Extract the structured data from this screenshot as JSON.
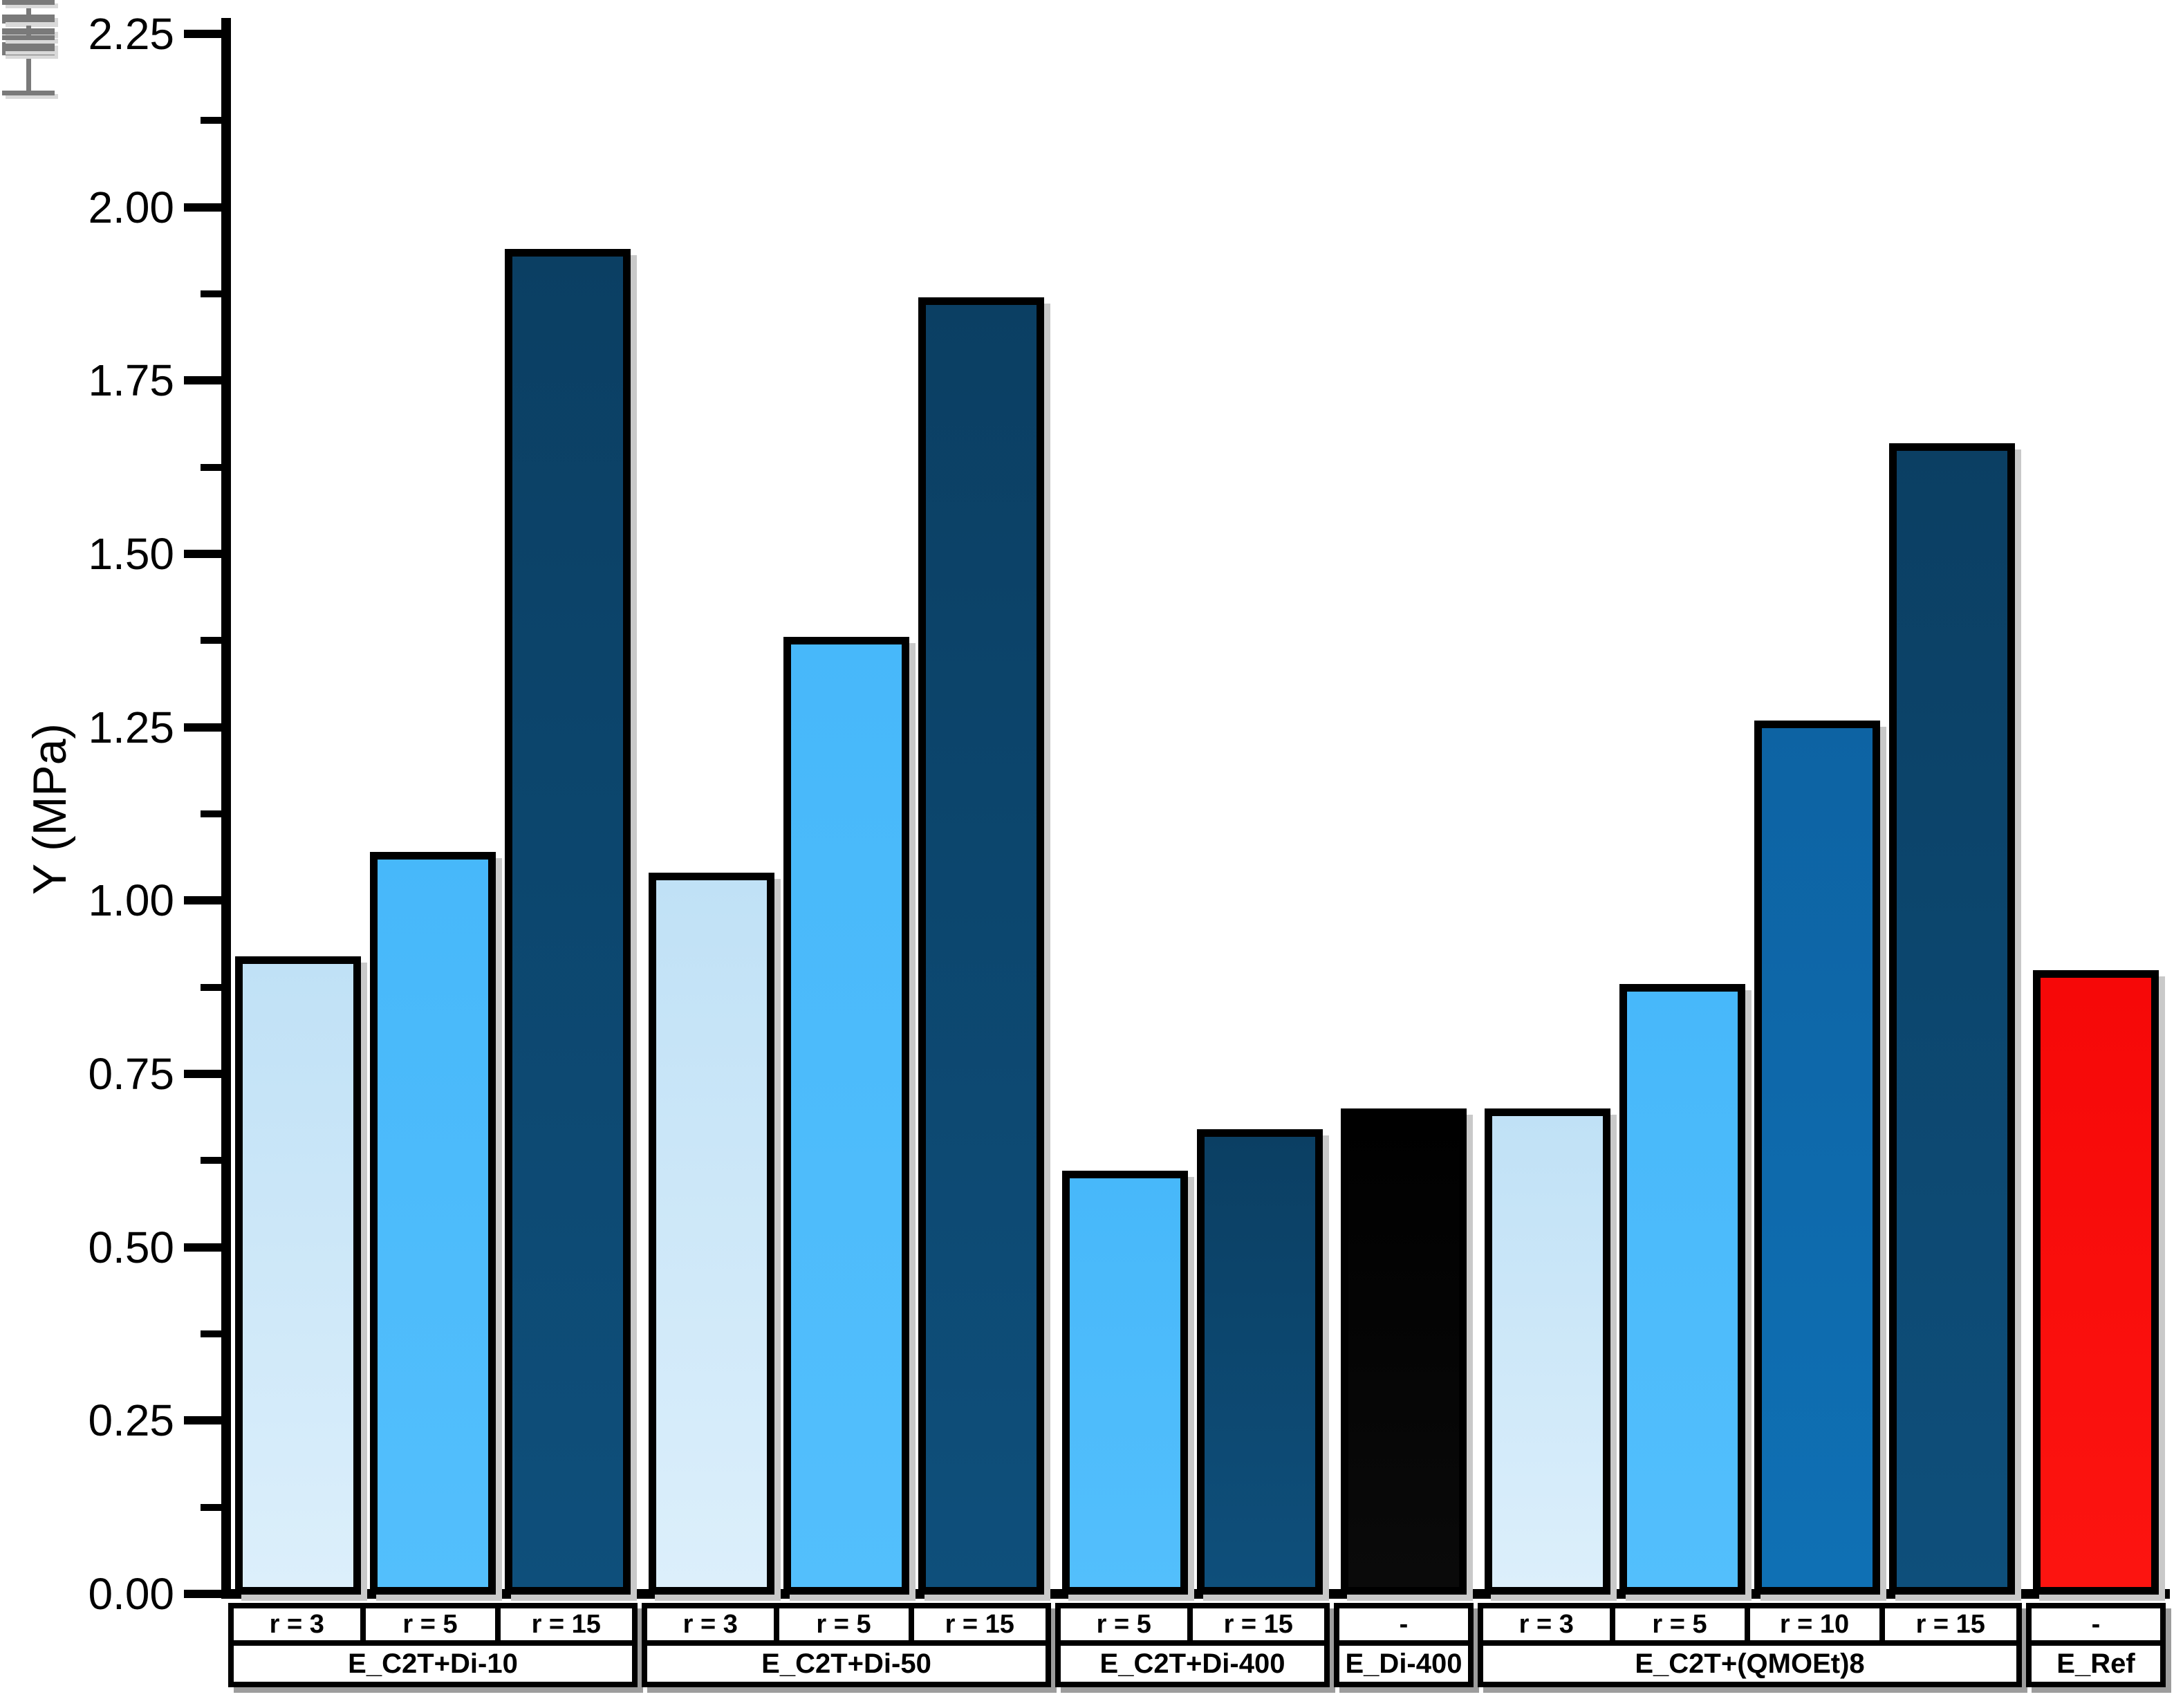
{
  "page": {
    "background": "#ffffff"
  },
  "chart_data": {
    "type": "bar",
    "title": "",
    "xlabel": "",
    "ylabel": "Y (MPa)",
    "ylim": [
      0,
      2.25
    ],
    "yticks": [
      "0.00",
      "0.25",
      "0.50",
      "0.75",
      "1.00",
      "1.25",
      "1.50",
      "1.75",
      "2.00",
      "2.25"
    ],
    "minor_tick_values": [
      0.125,
      0.375,
      0.625,
      0.875,
      1.125,
      1.375,
      1.625,
      1.875,
      2.125
    ],
    "grid": false,
    "legend_position": "none",
    "error_bar_color": "#7a7a7a",
    "axis_color": "#000000",
    "bar_colors": {
      "r3": {
        "top": "#c0e1f6",
        "bottom": "#dceffb"
      },
      "r5": {
        "top": "#47b8fa",
        "bottom": "#53bffc"
      },
      "r10": {
        "top": "#0d63a3",
        "bottom": "#0f70b4"
      },
      "r15": {
        "top": "#0b3f63",
        "bottom": "#0e4f7b"
      },
      "black": {
        "top": "#000000",
        "bottom": "#0a0a0a"
      },
      "red": {
        "top": "#f60808",
        "bottom": "#fc1410"
      }
    },
    "groups": [
      {
        "label": "E_C2T+Di-10",
        "bars": [
          {
            "label": "r = 3",
            "value": 0.92,
            "error": 0.02,
            "color": "r3"
          },
          {
            "label": "r = 5",
            "value": 1.07,
            "error": 0.03,
            "color": "r5"
          },
          {
            "label": "r = 15",
            "value": 1.94,
            "error": 0.065,
            "color": "r15"
          }
        ]
      },
      {
        "label": "E_C2T+Di-50",
        "bars": [
          {
            "label": "r = 3",
            "value": 1.04,
            "error": 0.036,
            "color": "r3"
          },
          {
            "label": "r = 5",
            "value": 1.38,
            "error": 0.033,
            "color": "r5"
          },
          {
            "label": "r = 15",
            "value": 1.87,
            "error": 0.012,
            "color": "r15"
          }
        ]
      },
      {
        "label": "E_C2T+Di-400",
        "bars": [
          {
            "label": "r = 5",
            "value": 0.61,
            "error": 0.021,
            "color": "r5"
          },
          {
            "label": "r = 15",
            "value": 0.67,
            "error": 0.013,
            "color": "r15"
          }
        ]
      },
      {
        "label": "E_Di-400",
        "bars": [
          {
            "label": "-",
            "value": 0.7,
            "error": 0.012,
            "color": "black"
          }
        ]
      },
      {
        "label": "E_C2T+(QMOEt)8",
        "bars": [
          {
            "label": "r = 3",
            "value": 0.7,
            "error": 0.012,
            "color": "r3"
          },
          {
            "label": "r = 5",
            "value": 0.88,
            "error": 0.01,
            "color": "r5"
          },
          {
            "label": "r = 10",
            "value": 1.26,
            "error": 0.025,
            "color": "r10"
          },
          {
            "label": "r = 15",
            "value": 1.66,
            "error": 0.025,
            "color": "r15"
          }
        ]
      },
      {
        "label": "E_Ref",
        "bars": [
          {
            "label": "-",
            "value": 0.9,
            "error": 0.012,
            "color": "red"
          }
        ]
      }
    ]
  }
}
